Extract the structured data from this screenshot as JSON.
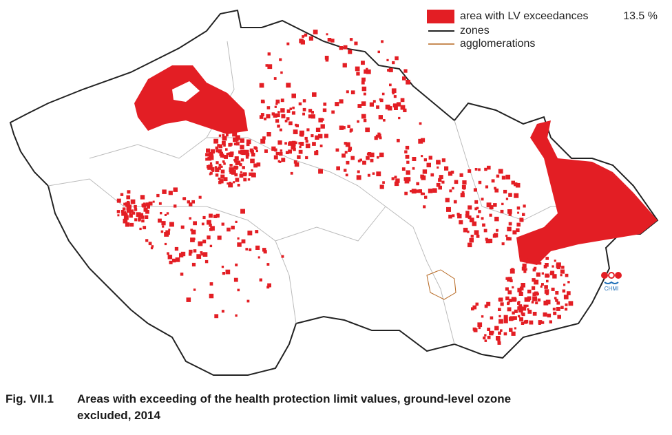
{
  "legend": {
    "items": [
      {
        "label": "area with LV exceedances",
        "value": "13.5 %"
      },
      {
        "label": "zones"
      },
      {
        "label": "agglomerations"
      }
    ]
  },
  "logo": {
    "text": "CHMI"
  },
  "caption": {
    "number": "Fig. VII.1",
    "lines": [
      "Areas with exceeding of the health protection limit values, ground-level ozone",
      "excluded, 2014"
    ]
  }
}
